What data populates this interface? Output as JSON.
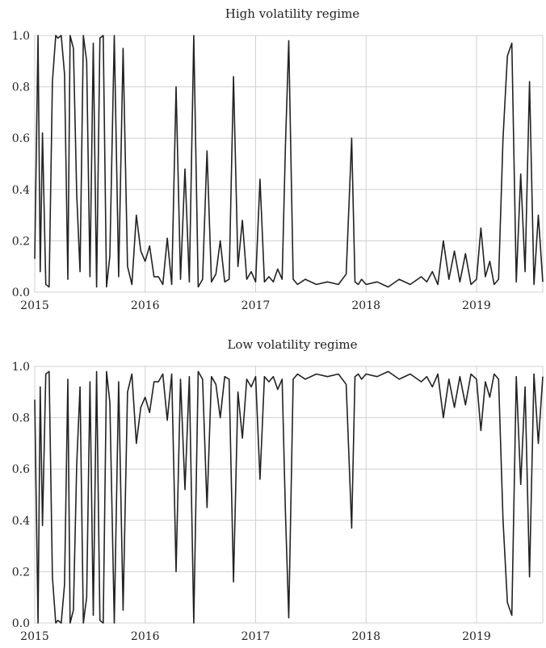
{
  "chart_data": [
    {
      "type": "line",
      "title": "High volatility regime",
      "xlabel": "",
      "ylabel": "",
      "xlim": [
        2015.0,
        2019.6
      ],
      "ylim": [
        0.0,
        1.0
      ],
      "x_ticks": [
        2015,
        2016,
        2017,
        2018,
        2019
      ],
      "x_tick_labels": [
        "2015",
        "2016",
        "2017",
        "2018",
        "2019"
      ],
      "y_ticks": [
        0.0,
        0.2,
        0.4,
        0.6,
        0.8,
        1.0
      ],
      "y_tick_labels": [
        "0.0",
        "0.2",
        "0.4",
        "0.6",
        "0.8",
        "1.0"
      ],
      "grid": true,
      "line_color": "#222222",
      "series": [
        {
          "x": [
            2015.0,
            2015.03,
            2015.05,
            2015.07,
            2015.1,
            2015.13,
            2015.16,
            2015.19,
            2015.21,
            2015.24,
            2015.27,
            2015.3,
            2015.32,
            2015.35,
            2015.38,
            2015.41,
            2015.44,
            2015.47,
            2015.5,
            2015.53,
            2015.56,
            2015.59,
            2015.62,
            2015.65,
            2015.68,
            2015.72,
            2015.76,
            2015.8,
            2015.84,
            2015.88,
            2015.92,
            2015.96,
            2016.0,
            2016.04,
            2016.08,
            2016.12,
            2016.16,
            2016.2,
            2016.24,
            2016.28,
            2016.32,
            2016.36,
            2016.4,
            2016.44,
            2016.48,
            2016.52,
            2016.56,
            2016.6,
            2016.64,
            2016.68,
            2016.72,
            2016.76,
            2016.8,
            2016.84,
            2016.88,
            2016.92,
            2016.96,
            2017.0,
            2017.04,
            2017.08,
            2017.12,
            2017.16,
            2017.2,
            2017.24,
            2017.27,
            2017.3,
            2017.34,
            2017.38,
            2017.45,
            2017.55,
            2017.65,
            2017.75,
            2017.82,
            2017.87,
            2017.9,
            2017.93,
            2017.96,
            2018.0,
            2018.1,
            2018.2,
            2018.3,
            2018.4,
            2018.5,
            2018.55,
            2018.6,
            2018.65,
            2018.7,
            2018.75,
            2018.8,
            2018.85,
            2018.9,
            2018.95,
            2019.0,
            2019.04,
            2019.08,
            2019.12,
            2019.16,
            2019.2,
            2019.24,
            2019.28,
            2019.32,
            2019.36,
            2019.4,
            2019.44,
            2019.48,
            2019.52,
            2019.56,
            2019.6
          ],
          "y": [
            0.13,
            1.0,
            0.08,
            0.62,
            0.03,
            0.02,
            0.82,
            1.0,
            0.99,
            1.0,
            0.85,
            0.05,
            1.0,
            0.95,
            0.38,
            0.08,
            1.0,
            0.9,
            0.06,
            0.97,
            0.02,
            0.99,
            1.0,
            0.02,
            0.14,
            1.0,
            0.06,
            0.95,
            0.1,
            0.03,
            0.3,
            0.16,
            0.12,
            0.18,
            0.06,
            0.06,
            0.03,
            0.21,
            0.03,
            0.8,
            0.05,
            0.48,
            0.04,
            1.0,
            0.02,
            0.05,
            0.55,
            0.04,
            0.07,
            0.2,
            0.04,
            0.05,
            0.84,
            0.1,
            0.28,
            0.05,
            0.08,
            0.04,
            0.44,
            0.04,
            0.06,
            0.04,
            0.09,
            0.05,
            0.57,
            0.98,
            0.05,
            0.03,
            0.05,
            0.03,
            0.04,
            0.03,
            0.07,
            0.6,
            0.04,
            0.03,
            0.05,
            0.03,
            0.04,
            0.02,
            0.05,
            0.03,
            0.06,
            0.04,
            0.08,
            0.03,
            0.2,
            0.05,
            0.16,
            0.04,
            0.15,
            0.03,
            0.05,
            0.25,
            0.06,
            0.12,
            0.03,
            0.05,
            0.6,
            0.92,
            0.97,
            0.04,
            0.46,
            0.08,
            0.82,
            0.03,
            0.3,
            0.04
          ]
        }
      ]
    },
    {
      "type": "line",
      "title": "Low volatility regime",
      "xlabel": "",
      "ylabel": "",
      "xlim": [
        2015.0,
        2019.6
      ],
      "ylim": [
        0.0,
        1.0
      ],
      "x_ticks": [
        2015,
        2016,
        2017,
        2018,
        2019
      ],
      "x_tick_labels": [
        "2015",
        "2016",
        "2017",
        "2018",
        "2019"
      ],
      "y_ticks": [
        0.0,
        0.2,
        0.4,
        0.6,
        0.8,
        1.0
      ],
      "y_tick_labels": [
        "0.0",
        "0.2",
        "0.4",
        "0.6",
        "0.8",
        "1.0"
      ],
      "grid": true,
      "line_color": "#222222",
      "series": [
        {
          "x": [
            2015.0,
            2015.03,
            2015.05,
            2015.07,
            2015.1,
            2015.13,
            2015.16,
            2015.19,
            2015.21,
            2015.24,
            2015.27,
            2015.3,
            2015.32,
            2015.35,
            2015.38,
            2015.41,
            2015.44,
            2015.47,
            2015.5,
            2015.53,
            2015.56,
            2015.59,
            2015.62,
            2015.65,
            2015.68,
            2015.72,
            2015.76,
            2015.8,
            2015.84,
            2015.88,
            2015.92,
            2015.96,
            2016.0,
            2016.04,
            2016.08,
            2016.12,
            2016.16,
            2016.2,
            2016.24,
            2016.28,
            2016.32,
            2016.36,
            2016.4,
            2016.44,
            2016.48,
            2016.52,
            2016.56,
            2016.6,
            2016.64,
            2016.68,
            2016.72,
            2016.76,
            2016.8,
            2016.84,
            2016.88,
            2016.92,
            2016.96,
            2017.0,
            2017.04,
            2017.08,
            2017.12,
            2017.16,
            2017.2,
            2017.24,
            2017.27,
            2017.3,
            2017.34,
            2017.38,
            2017.45,
            2017.55,
            2017.65,
            2017.75,
            2017.82,
            2017.87,
            2017.9,
            2017.93,
            2017.96,
            2018.0,
            2018.1,
            2018.2,
            2018.3,
            2018.4,
            2018.5,
            2018.55,
            2018.6,
            2018.65,
            2018.7,
            2018.75,
            2018.8,
            2018.85,
            2018.9,
            2018.95,
            2019.0,
            2019.04,
            2019.08,
            2019.12,
            2019.16,
            2019.2,
            2019.24,
            2019.28,
            2019.32,
            2019.36,
            2019.4,
            2019.44,
            2019.48,
            2019.52,
            2019.56,
            2019.6
          ],
          "y": [
            0.87,
            0.0,
            0.92,
            0.38,
            0.97,
            0.98,
            0.18,
            0.0,
            0.01,
            0.0,
            0.15,
            0.95,
            0.0,
            0.05,
            0.62,
            0.92,
            0.0,
            0.1,
            0.94,
            0.03,
            0.98,
            0.01,
            0.0,
            0.98,
            0.86,
            0.0,
            0.94,
            0.05,
            0.9,
            0.97,
            0.7,
            0.84,
            0.88,
            0.82,
            0.94,
            0.94,
            0.97,
            0.79,
            0.97,
            0.2,
            0.95,
            0.52,
            0.96,
            0.0,
            0.98,
            0.95,
            0.45,
            0.96,
            0.93,
            0.8,
            0.96,
            0.95,
            0.16,
            0.9,
            0.72,
            0.95,
            0.92,
            0.96,
            0.56,
            0.96,
            0.94,
            0.96,
            0.91,
            0.95,
            0.43,
            0.02,
            0.95,
            0.97,
            0.95,
            0.97,
            0.96,
            0.97,
            0.93,
            0.37,
            0.96,
            0.97,
            0.95,
            0.97,
            0.96,
            0.98,
            0.95,
            0.97,
            0.94,
            0.96,
            0.92,
            0.97,
            0.8,
            0.95,
            0.84,
            0.96,
            0.85,
            0.97,
            0.95,
            0.75,
            0.94,
            0.88,
            0.97,
            0.95,
            0.4,
            0.08,
            0.03,
            0.96,
            0.54,
            0.92,
            0.18,
            0.97,
            0.7,
            0.96
          ]
        }
      ]
    }
  ]
}
